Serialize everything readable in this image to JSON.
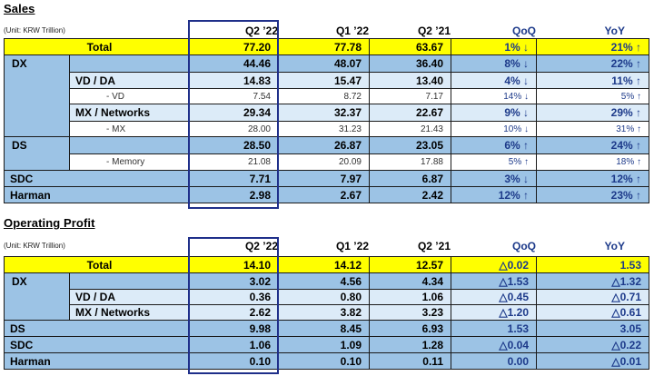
{
  "sales": {
    "title": "Sales",
    "unit": "(Unit: KRW Trillion)",
    "headers": [
      "Q2 ’22",
      "Q1 ’22",
      "Q2 ’21",
      "QoQ",
      "YoY"
    ],
    "total": {
      "label": "Total",
      "values": [
        "77.20",
        "77.78",
        "63.67",
        "1% ↓",
        "21% ↑"
      ]
    },
    "dx": {
      "label": "DX",
      "values": [
        "44.46",
        "48.07",
        "36.40",
        "8% ↓",
        "22% ↑"
      ]
    },
    "vd_da": {
      "label": "VD / DA",
      "values": [
        "14.83",
        "15.47",
        "13.40",
        "4% ↓",
        "11% ↑"
      ]
    },
    "vd": {
      "label": "- VD",
      "values": [
        "7.54",
        "8.72",
        "7.17",
        "14% ↓",
        "5% ↑"
      ]
    },
    "mx_networks": {
      "label": "MX / Networks",
      "values": [
        "29.34",
        "32.37",
        "22.67",
        "9% ↓",
        "29% ↑"
      ]
    },
    "mx": {
      "label": "- MX",
      "values": [
        "28.00",
        "31.23",
        "21.43",
        "10% ↓",
        "31% ↑"
      ]
    },
    "ds": {
      "label": "DS",
      "values": [
        "28.50",
        "26.87",
        "23.05",
        "6% ↑",
        "24% ↑"
      ]
    },
    "memory": {
      "label": "- Memory",
      "values": [
        "21.08",
        "20.09",
        "17.88",
        "5% ↑",
        "18% ↑"
      ]
    },
    "sdc": {
      "label": "SDC",
      "values": [
        "7.71",
        "7.97",
        "6.87",
        "3% ↓",
        "12% ↑"
      ]
    },
    "harman": {
      "label": "Harman",
      "values": [
        "2.98",
        "2.67",
        "2.42",
        "12% ↑",
        "23% ↑"
      ]
    }
  },
  "op": {
    "title": "Operating Profit",
    "unit": "(Unit: KRW Trillion)",
    "headers": [
      "Q2 ’22",
      "Q1 ’22",
      "Q2 ’21",
      "QoQ",
      "YoY"
    ],
    "total": {
      "label": "Total",
      "values": [
        "14.10",
        "14.12",
        "12.57",
        "△0.02",
        "1.53"
      ]
    },
    "dx": {
      "label": "DX",
      "values": [
        "3.02",
        "4.56",
        "4.34",
        "△1.53",
        "△1.32"
      ]
    },
    "vd_da": {
      "label": "VD / DA",
      "values": [
        "0.36",
        "0.80",
        "1.06",
        "△0.45",
        "△0.71"
      ]
    },
    "mx_networks": {
      "label": "MX / Networks",
      "values": [
        "2.62",
        "3.82",
        "3.23",
        "△1.20",
        "△0.61"
      ]
    },
    "ds": {
      "label": "DS",
      "values": [
        "9.98",
        "8.45",
        "6.93",
        "1.53",
        "3.05"
      ]
    },
    "sdc": {
      "label": "SDC",
      "values": [
        "1.06",
        "1.09",
        "1.28",
        "△0.04",
        "△0.22"
      ]
    },
    "harman": {
      "label": "Harman",
      "values": [
        "0.10",
        "0.10",
        "0.11",
        "0.00",
        "△0.01"
      ]
    }
  }
}
